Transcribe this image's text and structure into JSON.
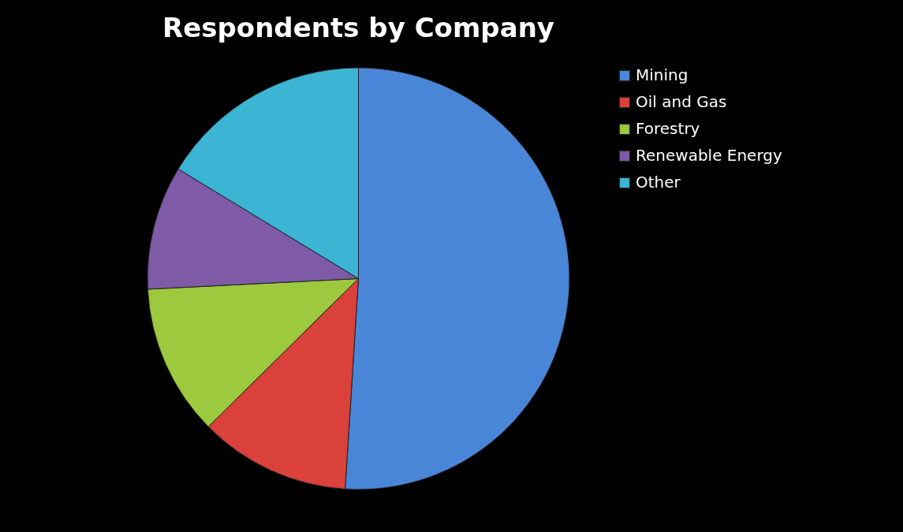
{
  "chart_data": {
    "type": "pie",
    "title": "Respondents by Company",
    "categories": [
      "Mining",
      "Oil and Gas",
      "Forestry",
      "Renewable Energy",
      "Other"
    ],
    "values": [
      51,
      11.6,
      11.6,
      9.5,
      16.3
    ],
    "colors": [
      "#4a86d8",
      "#d9413a",
      "#9cc93e",
      "#7f5aa6",
      "#3cb4d4"
    ],
    "legend": "right"
  }
}
